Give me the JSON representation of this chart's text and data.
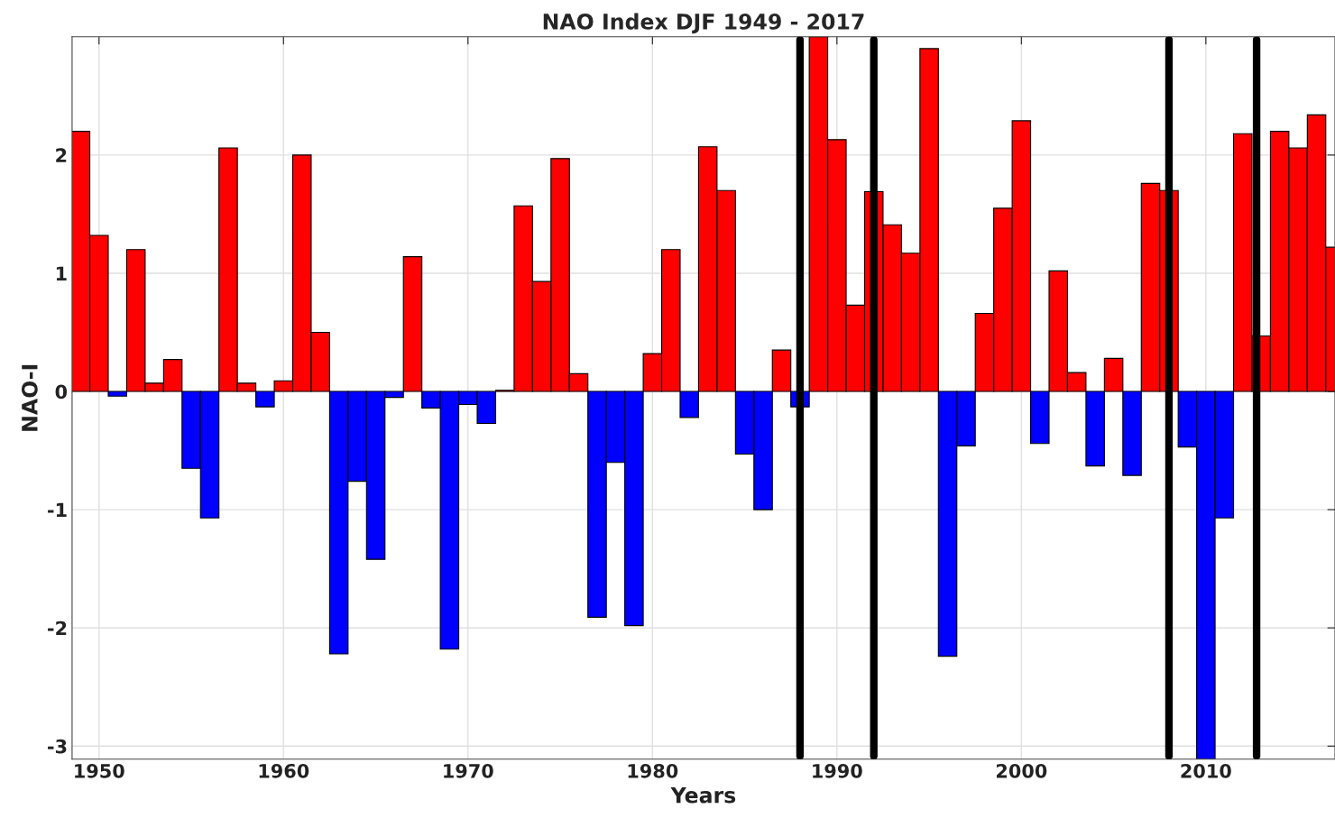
{
  "chart_data": {
    "type": "bar",
    "title": "NAO Index DJF 1949 - 2017",
    "xlabel": "Years",
    "ylabel": "NAO-I",
    "x": [
      1949,
      1950,
      1951,
      1952,
      1953,
      1954,
      1955,
      1956,
      1957,
      1958,
      1959,
      1960,
      1961,
      1962,
      1963,
      1964,
      1965,
      1966,
      1967,
      1968,
      1969,
      1970,
      1971,
      1972,
      1973,
      1974,
      1975,
      1976,
      1977,
      1978,
      1979,
      1980,
      1981,
      1982,
      1983,
      1984,
      1985,
      1986,
      1987,
      1988,
      1989,
      1990,
      1991,
      1992,
      1993,
      1994,
      1995,
      1996,
      1997,
      1998,
      1999,
      2000,
      2001,
      2002,
      2003,
      2004,
      2005,
      2006,
      2007,
      2008,
      2009,
      2010,
      2011,
      2012,
      2013,
      2014,
      2015,
      2016,
      2017
    ],
    "values": [
      2.2,
      1.32,
      -0.04,
      1.2,
      0.07,
      0.27,
      -0.65,
      -1.07,
      2.06,
      0.07,
      -0.13,
      0.09,
      2.0,
      0.5,
      -2.22,
      -0.76,
      -1.42,
      -0.05,
      1.14,
      -0.14,
      -2.18,
      -0.11,
      -0.27,
      0.01,
      1.57,
      0.93,
      1.97,
      0.15,
      -1.91,
      -0.6,
      -1.98,
      0.32,
      1.2,
      -0.22,
      2.07,
      1.7,
      -0.53,
      -1.0,
      0.35,
      -0.13,
      3.0,
      2.13,
      0.73,
      1.69,
      1.41,
      1.17,
      2.9,
      -2.24,
      -0.46,
      0.66,
      1.55,
      2.29,
      -0.44,
      1.02,
      0.16,
      -0.63,
      0.28,
      -0.71,
      1.76,
      1.7,
      -0.47,
      -3.11,
      -1.07,
      2.18,
      0.47,
      2.2,
      2.06,
      2.34,
      1.22
    ],
    "colors": [
      "#ff0000",
      "#ff0000",
      "#0000ff",
      "#ff0000",
      "#ff0000",
      "#ff0000",
      "#0000ff",
      "#0000ff",
      "#ff0000",
      "#ff0000",
      "#0000ff",
      "#ff0000",
      "#ff0000",
      "#ff0000",
      "#0000ff",
      "#0000ff",
      "#0000ff",
      "#0000ff",
      "#ff0000",
      "#0000ff",
      "#0000ff",
      "#0000ff",
      "#0000ff",
      "#ff0000",
      "#ff0000",
      "#ff0000",
      "#ff0000",
      "#ff0000",
      "#0000ff",
      "#0000ff",
      "#0000ff",
      "#ff0000",
      "#ff0000",
      "#0000ff",
      "#ff0000",
      "#ff0000",
      "#0000ff",
      "#0000ff",
      "#ff0000",
      "#0000ff",
      "#ff0000",
      "#ff0000",
      "#ff0000",
      "#ff0000",
      "#ff0000",
      "#ff0000",
      "#ff0000",
      "#0000ff",
      "#0000ff",
      "#ff0000",
      "#ff0000",
      "#ff0000",
      "#0000ff",
      "#ff0000",
      "#ff0000",
      "#0000ff",
      "#ff0000",
      "#0000ff",
      "#ff0000",
      "#ff0000",
      "#0000ff",
      "#0000ff",
      "#0000ff",
      "#ff0000",
      "#ff0000",
      "#ff0000",
      "#ff0000",
      "#ff0000",
      "#ff0000"
    ],
    "xlim": [
      1948.54,
      2017.0
    ],
    "xticks": [
      1950,
      1960,
      1970,
      1980,
      1990,
      2000,
      2010
    ],
    "ylim": [
      -3.11,
      3.0
    ],
    "yticks": [
      -3,
      -2,
      -1,
      0,
      1,
      2
    ],
    "ref_lines": [
      {
        "axis": "x",
        "value": 1988,
        "color": "#000000"
      },
      {
        "axis": "x",
        "value": 1992,
        "color": "#000000"
      },
      {
        "axis": "x",
        "value": 2008,
        "color": "#000000"
      },
      {
        "axis": "x",
        "value": 2012.75,
        "color": "#000000"
      }
    ],
    "grid": true,
    "legend": false
  }
}
